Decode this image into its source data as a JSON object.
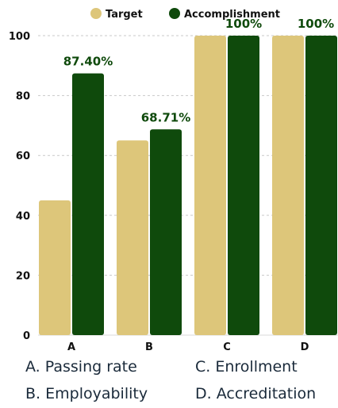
{
  "chart_data": {
    "type": "bar",
    "categories": [
      "A",
      "B",
      "C",
      "D"
    ],
    "series": [
      {
        "name": "Target",
        "color": "#ddc67a",
        "values": [
          45,
          65,
          100,
          100
        ]
      },
      {
        "name": "Accomplishment",
        "color": "#0f4a0c",
        "values": [
          87.4,
          68.71,
          100,
          100
        ]
      }
    ],
    "data_labels": [
      "87.40%",
      "68.71%",
      "100%",
      "100%"
    ],
    "ylim": [
      0,
      100
    ],
    "yticks": [
      0,
      20,
      40,
      60,
      80,
      100
    ],
    "grid": true,
    "legend_position": "top-center"
  },
  "notes": [
    "A. Passing rate",
    "B. Employability",
    "C. Enrollment",
    "D. Accreditation"
  ]
}
